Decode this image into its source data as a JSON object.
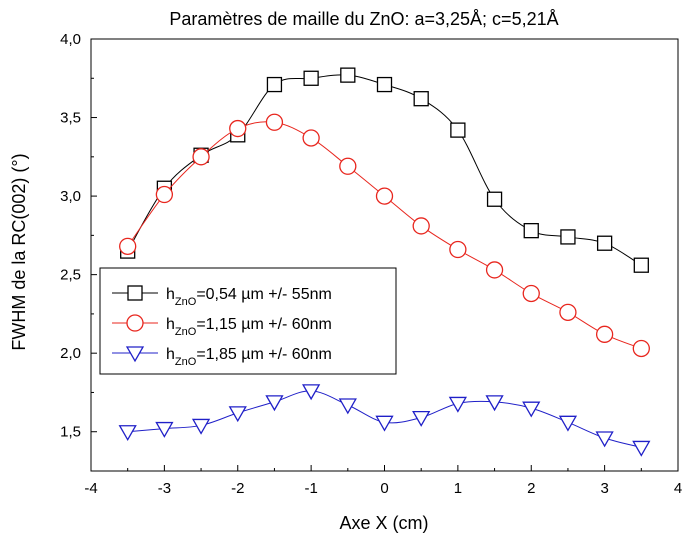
{
  "chart_data": {
    "type": "line",
    "title": "Paramètres de maille du ZnO: a=3,25Å; c=5,21Å",
    "xlabel": "Axe X (cm)",
    "ylabel": "FWHM de la RC(002) (°)",
    "xlim": [
      -4,
      4
    ],
    "ylim": [
      1.25,
      4.0
    ],
    "xticks": [
      "-4",
      "-3",
      "-2",
      "-1",
      "0",
      "1",
      "2",
      "3",
      "4"
    ],
    "yticks": [
      "1,5",
      "2,0",
      "2,5",
      "3,0",
      "3,5",
      "4,0"
    ],
    "x": [
      -3.5,
      -3,
      -2.5,
      -2,
      -1.5,
      -1,
      -0.5,
      0,
      0.5,
      1,
      1.5,
      2,
      2.5,
      3,
      3.5
    ],
    "legend_position": "left-middle",
    "series": [
      {
        "name_prefix": "h",
        "name_subscript": "ZnO",
        "name_suffix": "=0,54 µm +/- 55nm",
        "color": "#000000",
        "marker": "square",
        "values": [
          2.65,
          3.05,
          3.26,
          3.39,
          3.71,
          3.75,
          3.77,
          3.71,
          3.62,
          3.42,
          2.98,
          2.78,
          2.74,
          2.7,
          2.56
        ]
      },
      {
        "name_prefix": "h",
        "name_subscript": "ZnO",
        "name_suffix": "=1,15 µm +/- 60nm",
        "color": "#e8261e",
        "marker": "circle",
        "values": [
          2.68,
          3.01,
          3.25,
          3.43,
          3.47,
          3.37,
          3.19,
          3.0,
          2.81,
          2.66,
          2.53,
          2.38,
          2.26,
          2.12,
          2.03
        ]
      },
      {
        "name_prefix": "h",
        "name_subscript": "ZnO",
        "name_suffix": "=1,85 µm +/- 60nm",
        "color": "#2020c8",
        "marker": "triangle-down",
        "values": [
          1.5,
          1.52,
          1.54,
          1.62,
          1.69,
          1.76,
          1.67,
          1.56,
          1.59,
          1.68,
          1.69,
          1.65,
          1.56,
          1.46,
          1.4
        ]
      }
    ]
  }
}
